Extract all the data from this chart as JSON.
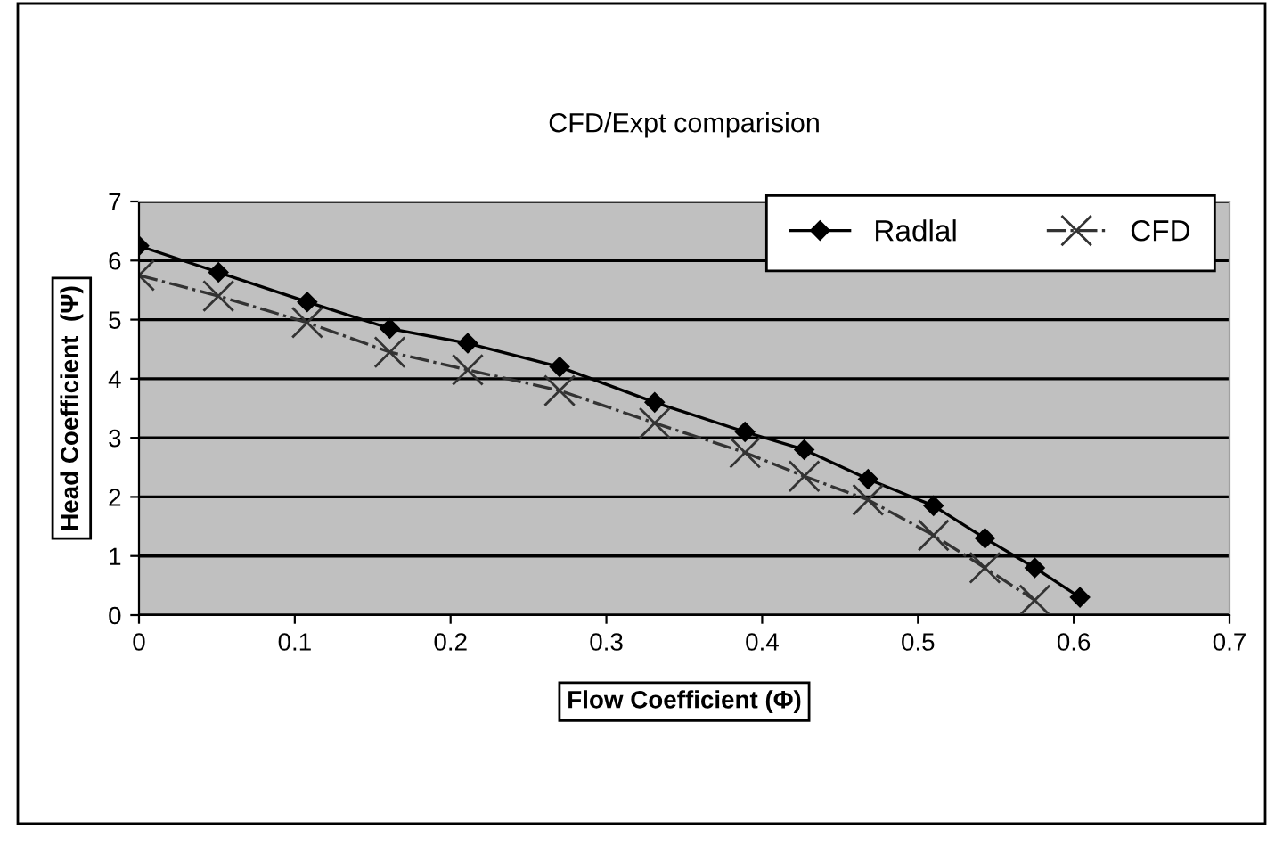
{
  "chart_data": {
    "type": "line",
    "title": "CFD/Expt comparision",
    "xlabel": "Flow Coefficient (Φ)",
    "ylabel": "Head Coefficient  (Ψ)",
    "xlim": [
      0,
      0.7
    ],
    "xticks": [
      0,
      0.1,
      0.2,
      0.3,
      0.4,
      0.5,
      0.6,
      0.7
    ],
    "ylim": [
      0,
      7
    ],
    "yticks": [
      0,
      1,
      2,
      3,
      4,
      5,
      6,
      7
    ],
    "grid": "y",
    "legend": "top right",
    "series": [
      {
        "name": "Radlal",
        "color": "#000000",
        "marker": "diamond",
        "line_style": "solid",
        "x": [
          0,
          0.051,
          0.108,
          0.161,
          0.211,
          0.27,
          0.331,
          0.389,
          0.427,
          0.468,
          0.51,
          0.543,
          0.575,
          0.604
        ],
        "values": [
          6.25,
          5.8,
          5.3,
          4.85,
          4.6,
          4.2,
          3.6,
          3.1,
          2.8,
          2.3,
          1.85,
          1.3,
          0.8,
          0.3
        ]
      },
      {
        "name": "CFD",
        "color": "#333333",
        "marker": "cross",
        "line_style": "dashdot",
        "x": [
          0,
          0.051,
          0.108,
          0.161,
          0.211,
          0.27,
          0.331,
          0.389,
          0.427,
          0.468,
          0.51,
          0.543,
          0.575
        ],
        "values": [
          5.75,
          5.4,
          4.95,
          4.45,
          4.15,
          3.8,
          3.25,
          2.75,
          2.35,
          1.95,
          1.35,
          0.8,
          0.25
        ]
      }
    ]
  }
}
